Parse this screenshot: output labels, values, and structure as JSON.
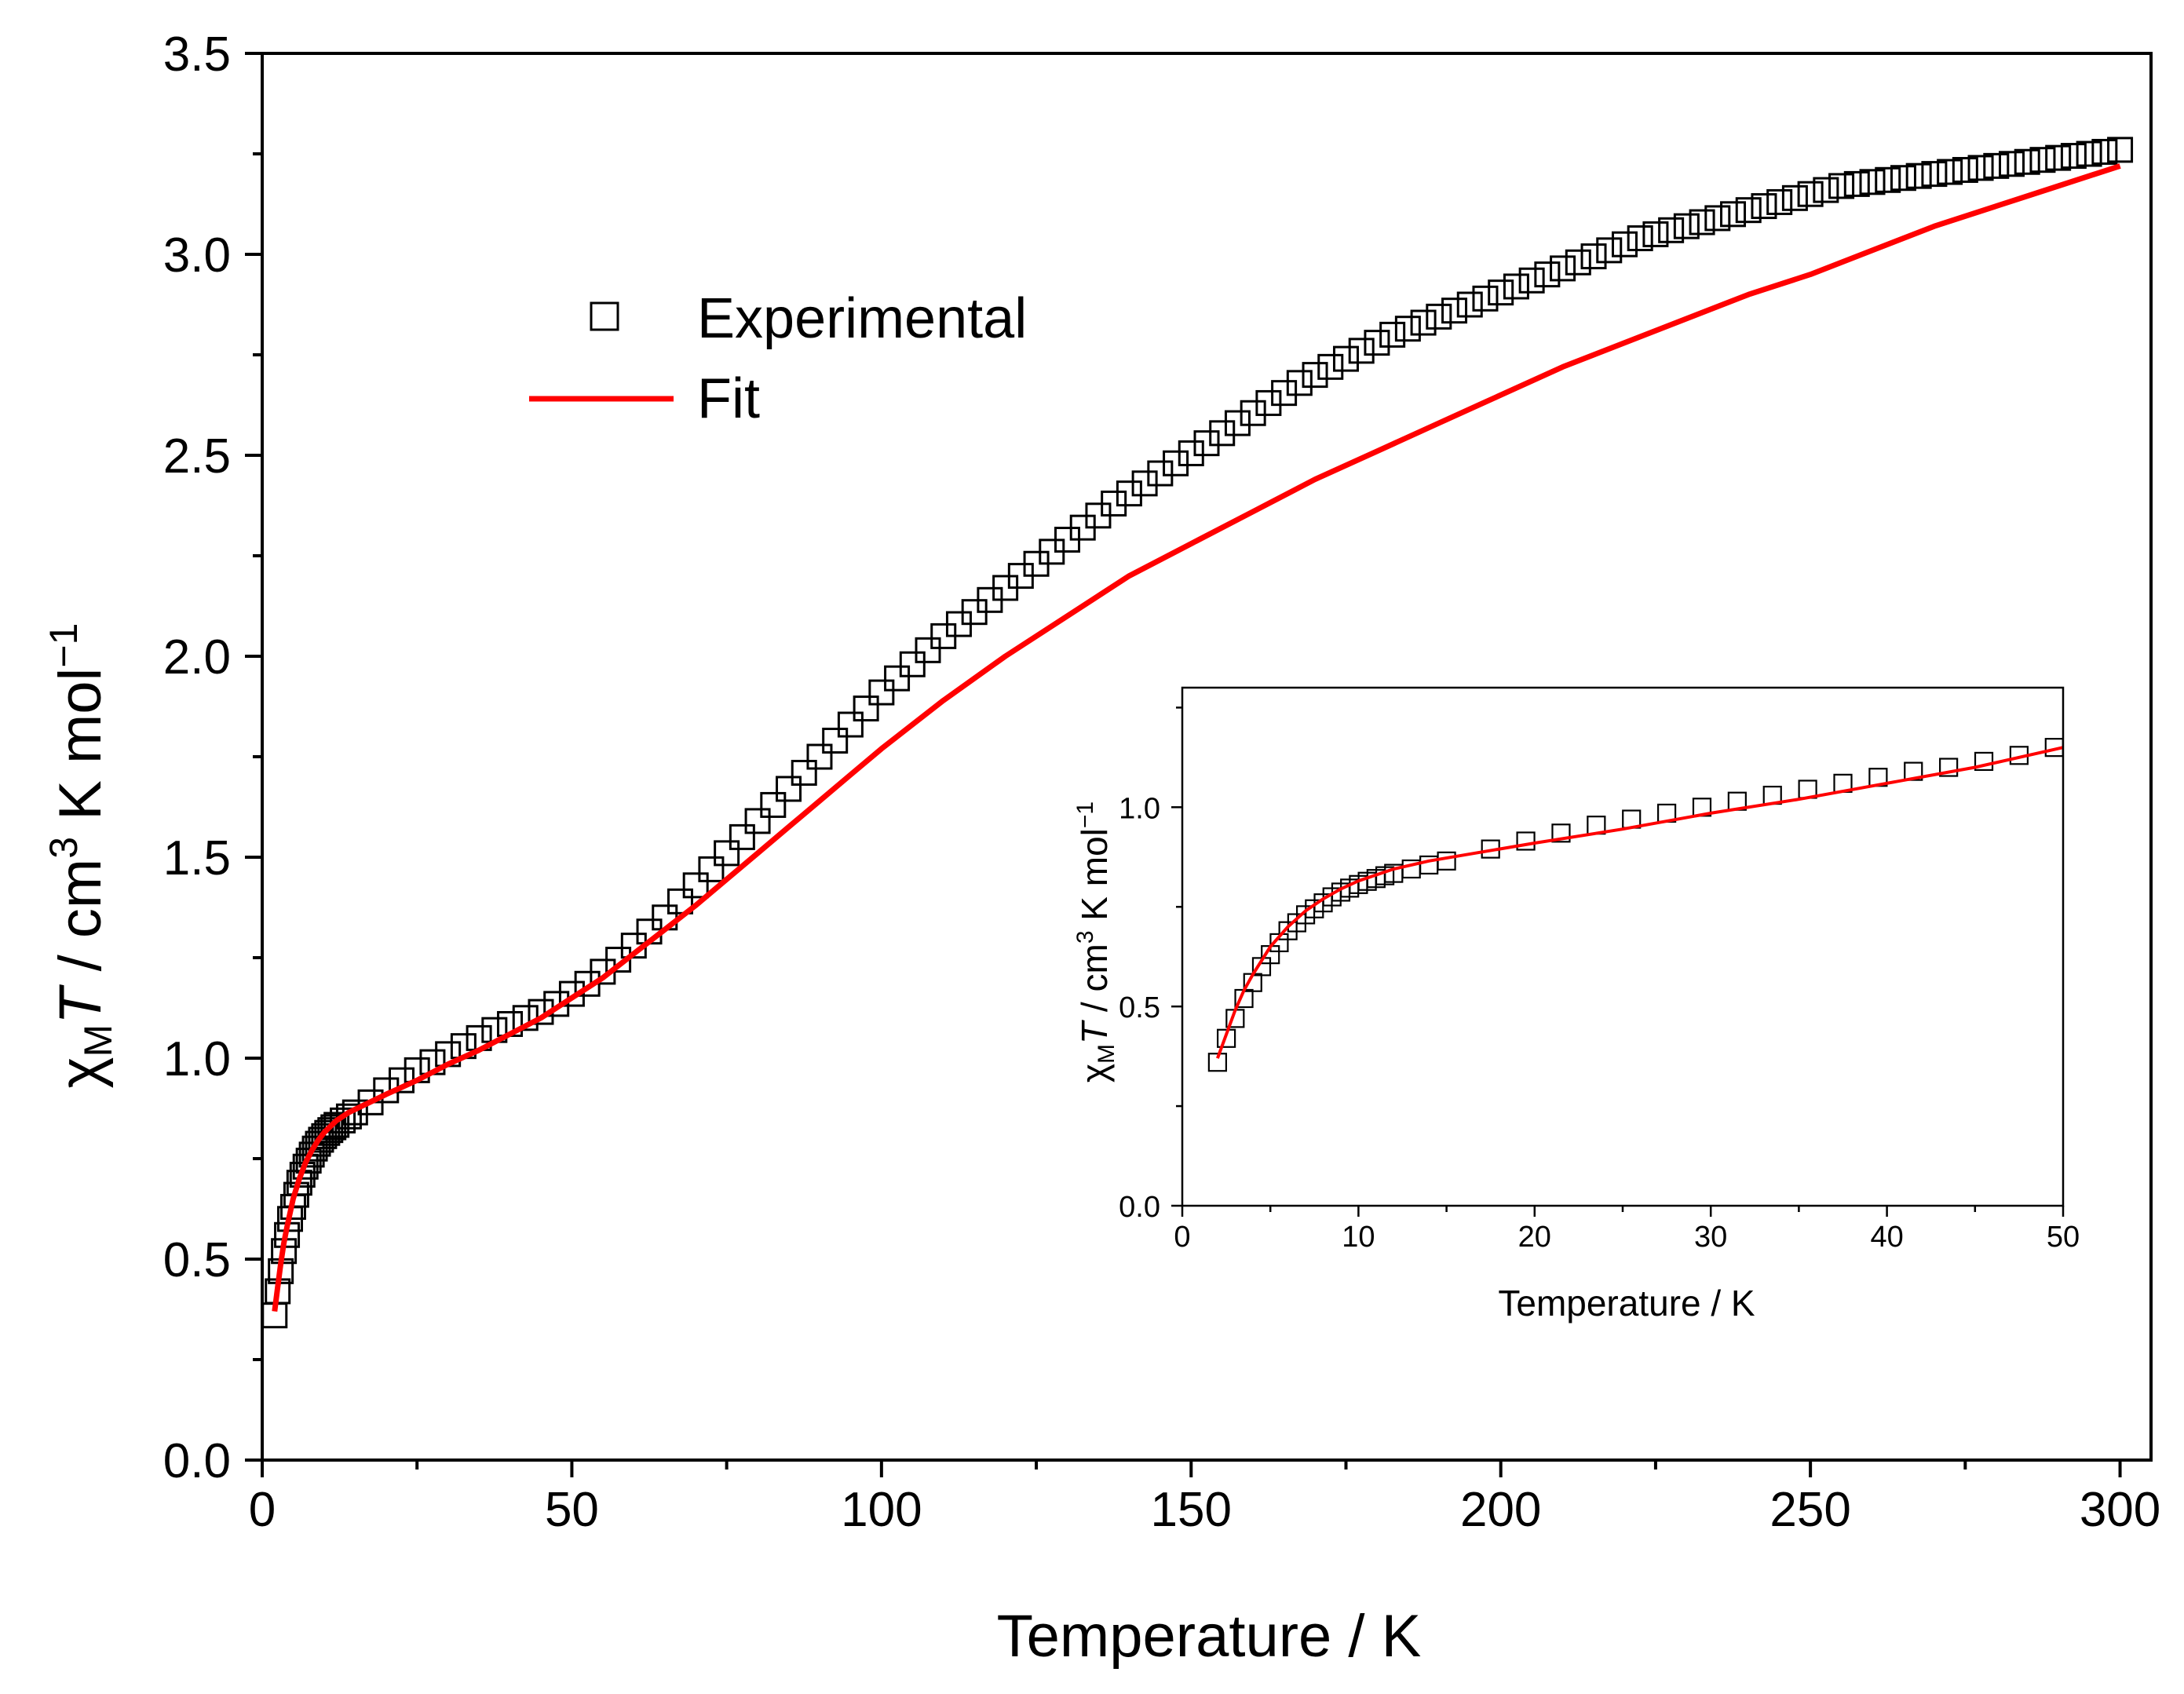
{
  "chart_data": [
    {
      "id": "main",
      "type": "scatter",
      "title": "",
      "xlabel": "Temperature / K",
      "ylabel": {
        "chi": "χ",
        "sub": "M",
        "T": "T",
        "rest": " / cm",
        "sup3": "3",
        "tail": " K mol",
        "supneg": "−1"
      },
      "xlim": [
        0,
        305
      ],
      "ylim": [
        0,
        3.5
      ],
      "xticks": [
        0,
        50,
        100,
        150,
        200,
        250,
        300
      ],
      "xtick_labels": [
        "0",
        "50",
        "100",
        "150",
        "200",
        "250",
        "300"
      ],
      "yticks": [
        0.0,
        0.5,
        1.0,
        1.5,
        2.0,
        2.5,
        3.0,
        3.5
      ],
      "ytick_labels": [
        "0.0",
        "0.5",
        "1.0",
        "1.5",
        "2.0",
        "2.5",
        "3.0",
        "3.5"
      ],
      "legend": {
        "position": "top-left",
        "entries": [
          "Experimental",
          "Fit"
        ]
      },
      "series": [
        {
          "name": "Experimental",
          "marker": "open-square",
          "color": "#000000",
          "x": [
            2,
            2.5,
            3,
            3.5,
            4,
            4.5,
            5,
            5.5,
            6,
            6.5,
            7,
            7.5,
            8,
            8.5,
            9,
            9.5,
            10,
            10.5,
            11,
            11.5,
            12,
            13,
            14,
            15,
            17.5,
            20,
            22.5,
            25,
            27.5,
            30,
            32.5,
            35,
            37.5,
            40,
            42.5,
            45,
            47.5,
            50,
            52.5,
            55,
            57.5,
            60,
            62.5,
            65,
            67.5,
            70,
            72.5,
            75,
            77.5,
            80,
            82.5,
            85,
            87.5,
            90,
            92.5,
            95,
            97.5,
            100,
            102.5,
            105,
            107.5,
            110,
            112.5,
            115,
            117.5,
            120,
            122.5,
            125,
            127.5,
            130,
            132.5,
            135,
            137.5,
            140,
            142.5,
            145,
            147.5,
            150,
            152.5,
            155,
            157.5,
            160,
            162.5,
            165,
            167.5,
            170,
            172.5,
            175,
            177.5,
            180,
            182.5,
            185,
            187.5,
            190,
            192.5,
            195,
            197.5,
            200,
            202.5,
            205,
            207.5,
            210,
            212.5,
            215,
            217.5,
            220,
            222.5,
            225,
            227.5,
            230,
            232.5,
            235,
            237.5,
            240,
            242.5,
            245,
            247.5,
            250,
            252.5,
            255,
            257.5,
            260,
            262.5,
            265,
            267.5,
            270,
            272.5,
            275,
            277.5,
            280,
            282.5,
            285,
            287.5,
            290,
            292.5,
            295,
            297.5,
            300
          ],
          "y": [
            0.36,
            0.42,
            0.47,
            0.52,
            0.56,
            0.6,
            0.63,
            0.66,
            0.69,
            0.71,
            0.73,
            0.745,
            0.76,
            0.775,
            0.787,
            0.797,
            0.806,
            0.814,
            0.821,
            0.828,
            0.834,
            0.845,
            0.855,
            0.865,
            0.89,
            0.92,
            0.945,
            0.97,
            0.99,
            1.01,
            1.03,
            1.05,
            1.07,
            1.085,
            1.1,
            1.115,
            1.135,
            1.16,
            1.185,
            1.215,
            1.245,
            1.28,
            1.315,
            1.35,
            1.39,
            1.43,
            1.47,
            1.51,
            1.55,
            1.59,
            1.63,
            1.67,
            1.71,
            1.75,
            1.79,
            1.83,
            1.87,
            1.91,
            1.945,
            1.98,
            2.015,
            2.05,
            2.08,
            2.11,
            2.14,
            2.17,
            2.2,
            2.23,
            2.26,
            2.29,
            2.32,
            2.35,
            2.38,
            2.405,
            2.43,
            2.455,
            2.48,
            2.505,
            2.53,
            2.555,
            2.58,
            2.605,
            2.63,
            2.655,
            2.68,
            2.7,
            2.72,
            2.74,
            2.76,
            2.78,
            2.8,
            2.815,
            2.83,
            2.845,
            2.86,
            2.875,
            2.89,
            2.905,
            2.92,
            2.935,
            2.95,
            2.965,
            2.98,
            2.995,
            3.01,
            3.025,
            3.04,
            3.05,
            3.06,
            3.07,
            3.08,
            3.09,
            3.1,
            3.11,
            3.12,
            3.13,
            3.14,
            3.15,
            3.16,
            3.17,
            3.175,
            3.18,
            3.185,
            3.19,
            3.195,
            3.2,
            3.205,
            3.21,
            3.215,
            3.22,
            3.225,
            3.23,
            3.235,
            3.24,
            3.245,
            3.25,
            3.255,
            3.26
          ]
        },
        {
          "name": "Fit",
          "marker": "line",
          "color": "#ff0000",
          "x": [
            2,
            2.5,
            3,
            3.5,
            4,
            5,
            6,
            7,
            8,
            9,
            10,
            12,
            14,
            16,
            18,
            20,
            25,
            30,
            35,
            40,
            45,
            50,
            55,
            60,
            65,
            70,
            75,
            80,
            85,
            90,
            95,
            100,
            110,
            120,
            130,
            140,
            150,
            160,
            170,
            180,
            190,
            200,
            210,
            220,
            230,
            240,
            250,
            260,
            270,
            280,
            290,
            300
          ],
          "y": [
            0.37,
            0.43,
            0.49,
            0.54,
            0.58,
            0.65,
            0.7,
            0.74,
            0.77,
            0.795,
            0.815,
            0.845,
            0.865,
            0.88,
            0.895,
            0.91,
            0.945,
            0.985,
            1.02,
            1.06,
            1.1,
            1.15,
            1.2,
            1.26,
            1.32,
            1.38,
            1.445,
            1.51,
            1.575,
            1.64,
            1.705,
            1.77,
            1.89,
            2.0,
            2.1,
            2.2,
            2.28,
            2.36,
            2.44,
            2.51,
            2.58,
            2.65,
            2.72,
            2.78,
            2.84,
            2.9,
            2.95,
            3.01,
            3.07,
            3.12,
            3.17,
            3.22
          ]
        }
      ]
    },
    {
      "id": "inset",
      "type": "scatter",
      "title": "",
      "xlabel": "Temperature / K",
      "ylabel": {
        "chi": "χ",
        "sub": "M",
        "T": "T",
        "rest": " / cm",
        "sup3": "3",
        "tail": " K mol",
        "supneg": "−1"
      },
      "xlim": [
        0,
        50
      ],
      "ylim": [
        0,
        1.3
      ],
      "xticks": [
        0,
        10,
        20,
        30,
        40,
        50
      ],
      "xtick_labels": [
        "0",
        "10",
        "20",
        "30",
        "40",
        "50"
      ],
      "yticks": [
        0.0,
        0.5,
        1.0
      ],
      "ytick_labels": [
        "0.0",
        "0.5",
        "1.0"
      ],
      "series": [
        {
          "name": "Experimental",
          "marker": "open-square",
          "color": "#000000",
          "x": [
            2,
            2.5,
            3,
            3.5,
            4,
            4.5,
            5,
            5.5,
            6,
            6.5,
            7,
            7.5,
            8,
            8.5,
            9,
            9.5,
            10,
            10.5,
            11,
            11.5,
            12,
            13,
            14,
            15,
            17.5,
            19.5,
            21.5,
            23.5,
            25.5,
            27.5,
            29.5,
            31.5,
            33.5,
            35.5,
            37.5,
            39.5,
            41.5,
            43.5,
            45.5,
            47.5,
            49.5
          ],
          "y": [
            0.36,
            0.42,
            0.47,
            0.52,
            0.56,
            0.6,
            0.63,
            0.66,
            0.69,
            0.71,
            0.73,
            0.745,
            0.76,
            0.775,
            0.787,
            0.797,
            0.806,
            0.814,
            0.821,
            0.828,
            0.834,
            0.845,
            0.855,
            0.865,
            0.895,
            0.915,
            0.935,
            0.955,
            0.97,
            0.985,
            1.0,
            1.015,
            1.03,
            1.045,
            1.06,
            1.075,
            1.09,
            1.1,
            1.115,
            1.13,
            1.15
          ]
        },
        {
          "name": "Fit",
          "marker": "line",
          "color": "#ff0000",
          "x": [
            2,
            2.5,
            3,
            3.5,
            4,
            5,
            6,
            7,
            8,
            9,
            10,
            12,
            14,
            16,
            18,
            20,
            25,
            30,
            35,
            40,
            45,
            50
          ],
          "y": [
            0.37,
            0.43,
            0.49,
            0.54,
            0.58,
            0.65,
            0.7,
            0.74,
            0.77,
            0.795,
            0.815,
            0.845,
            0.865,
            0.88,
            0.895,
            0.91,
            0.945,
            0.985,
            1.02,
            1.06,
            1.1,
            1.15
          ]
        }
      ]
    }
  ]
}
